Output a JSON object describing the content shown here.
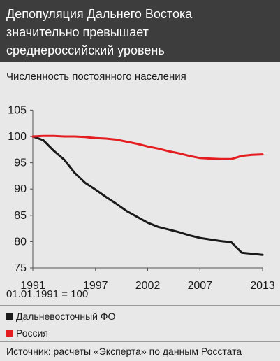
{
  "header": {
    "title_lines": [
      "Депопуляция Дальнего Востока",
      "значительно превышает",
      "среднероссийский уровень"
    ]
  },
  "subtitle": "Численность постоянного населения",
  "note": "01.01.1991 = 100",
  "source": "Источник: расчеты «Эксперта» по данным Росстата",
  "colors": {
    "header_bg": "#3d3d3d",
    "panel_bg": "#e8e8e8",
    "far_east": "#1a1a1a",
    "russia": "#e41e20"
  },
  "chart_data": {
    "type": "line",
    "title": "Численность постоянного населения",
    "x": [
      1991,
      1992,
      1993,
      1994,
      1995,
      1996,
      1997,
      1998,
      1999,
      2000,
      2001,
      2002,
      2003,
      2004,
      2005,
      2006,
      2007,
      2008,
      2009,
      2010,
      2011,
      2012,
      2013
    ],
    "xticks": [
      "1991",
      "1997",
      "2002",
      "2007",
      "2013"
    ],
    "xtick_values": [
      1991,
      1997,
      2002,
      2007,
      2013
    ],
    "yticks": [
      "105",
      "100",
      "95",
      "90",
      "85",
      "80",
      "75"
    ],
    "ytick_values": [
      105,
      100,
      95,
      90,
      85,
      80,
      75
    ],
    "xlim": [
      1991,
      2013
    ],
    "ylim": [
      75,
      105
    ],
    "grid": false,
    "series": [
      {
        "name": "Дальневосточный ФО",
        "color": "#1a1a1a",
        "values": [
          100,
          99.3,
          97.3,
          95.6,
          93.1,
          91.2,
          89.9,
          88.5,
          87.2,
          85.8,
          84.7,
          83.6,
          82.8,
          82.3,
          81.8,
          81.2,
          80.7,
          80.4,
          80.1,
          79.9,
          77.9,
          77.7,
          77.5
        ]
      },
      {
        "name": "Россия",
        "color": "#e41e20",
        "values": [
          100,
          100.1,
          100.1,
          100.0,
          100.0,
          99.9,
          99.7,
          99.6,
          99.4,
          99.0,
          98.6,
          98.1,
          97.7,
          97.2,
          96.8,
          96.3,
          95.9,
          95.8,
          95.7,
          95.7,
          96.3,
          96.5,
          96.6
        ]
      }
    ]
  },
  "legend": [
    {
      "label": "Дальневосточный ФО",
      "color": "#1a1a1a"
    },
    {
      "label": "Россия",
      "color": "#e41e20"
    }
  ]
}
